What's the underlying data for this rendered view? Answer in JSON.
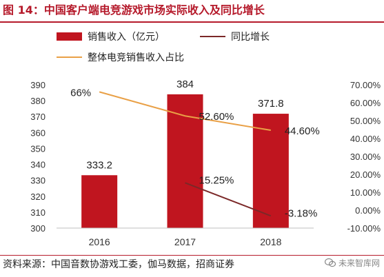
{
  "header": {
    "title": "图 14：中国客户端电竞游戏市场实际收入及同比增长"
  },
  "footer": {
    "source": "资料来源：中国音数协游戏工委，伽马数据，招商证券",
    "watermark": "未来智库网"
  },
  "colors": {
    "brand_red": "#b5192a",
    "bar": "#c0151f",
    "yoy_line": "#7b2828",
    "share_line": "#e9a046",
    "grid": "#d9d9d9"
  },
  "chart_data": {
    "type": "bar",
    "categories": [
      "2016",
      "2017",
      "2018"
    ],
    "series": [
      {
        "name": "销售收入（亿元）",
        "type": "bar",
        "axis": "left",
        "values": [
          333.2,
          384,
          371.8
        ],
        "labels": [
          "333.2",
          "384",
          "371.8"
        ]
      },
      {
        "name": "同比增长",
        "type": "line",
        "axis": "right",
        "values": [
          null,
          15.25,
          -3.18
        ],
        "labels": [
          "",
          "15.25%",
          "-3.18%"
        ]
      },
      {
        "name": "整体电竞销售收入占比",
        "type": "line",
        "axis": "right",
        "values": [
          66,
          52.6,
          44.6
        ],
        "labels": [
          "66%",
          "52.60%",
          "44.60%"
        ]
      }
    ],
    "y_left": {
      "min": 300,
      "max": 390,
      "ticks": [
        "300",
        "310",
        "320",
        "330",
        "340",
        "350",
        "360",
        "370",
        "380",
        "390"
      ]
    },
    "y_right": {
      "min": -10,
      "max": 70,
      "ticks": [
        "-10.00%",
        "0.00%",
        "10.00%",
        "20.00%",
        "30.00%",
        "40.00%",
        "50.00%",
        "60.00%",
        "70.00%"
      ]
    },
    "legend_position": "top",
    "grid": false
  }
}
